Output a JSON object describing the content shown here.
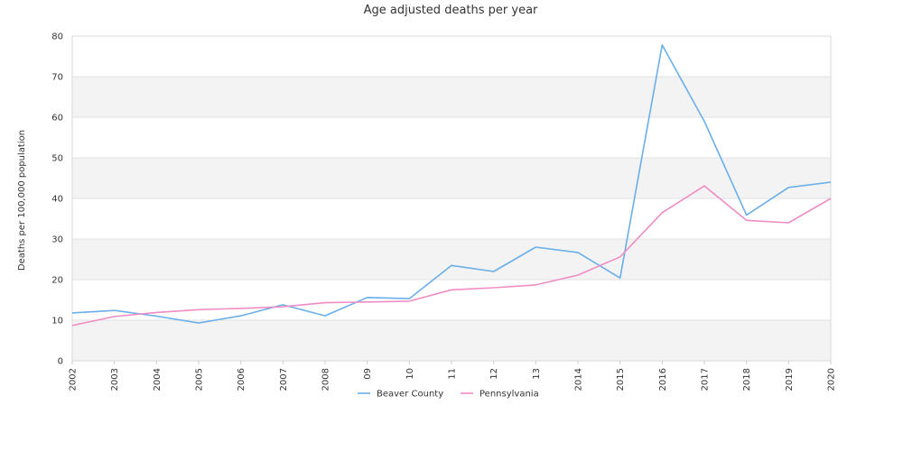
{
  "chart_data": {
    "type": "line",
    "title": "Age adjusted deaths per year",
    "xlabel": "",
    "ylabel": "Deaths per 100,000 population",
    "categories": [
      "2002",
      "2003",
      "2004",
      "2005",
      "2006",
      "2007",
      "2008",
      "09",
      "10",
      "11",
      "12",
      "13",
      "2014",
      "2015",
      "2016",
      "2017",
      "2018",
      "2019",
      "2020"
    ],
    "ylim": [
      0,
      80
    ],
    "yticks": [
      0,
      10,
      20,
      30,
      40,
      50,
      60,
      70,
      80
    ],
    "grid": true,
    "legend": "bottom-center",
    "series": [
      {
        "name": "Beaver County",
        "color": "#6aafea",
        "values": [
          11.8,
          12.4,
          11.0,
          9.3,
          11.1,
          13.8,
          11.1,
          15.6,
          15.3,
          23.5,
          22.0,
          28.0,
          26.7,
          20.4,
          77.8,
          59.0,
          35.9,
          42.7,
          44.0
        ]
      },
      {
        "name": "Pennsylvania",
        "color": "#f08cc4",
        "values": [
          8.7,
          10.9,
          11.9,
          12.6,
          12.9,
          13.3,
          14.3,
          14.5,
          14.7,
          17.5,
          18.0,
          18.7,
          21.1,
          25.6,
          36.5,
          43.1,
          34.6,
          34.0,
          40.0
        ]
      }
    ]
  }
}
